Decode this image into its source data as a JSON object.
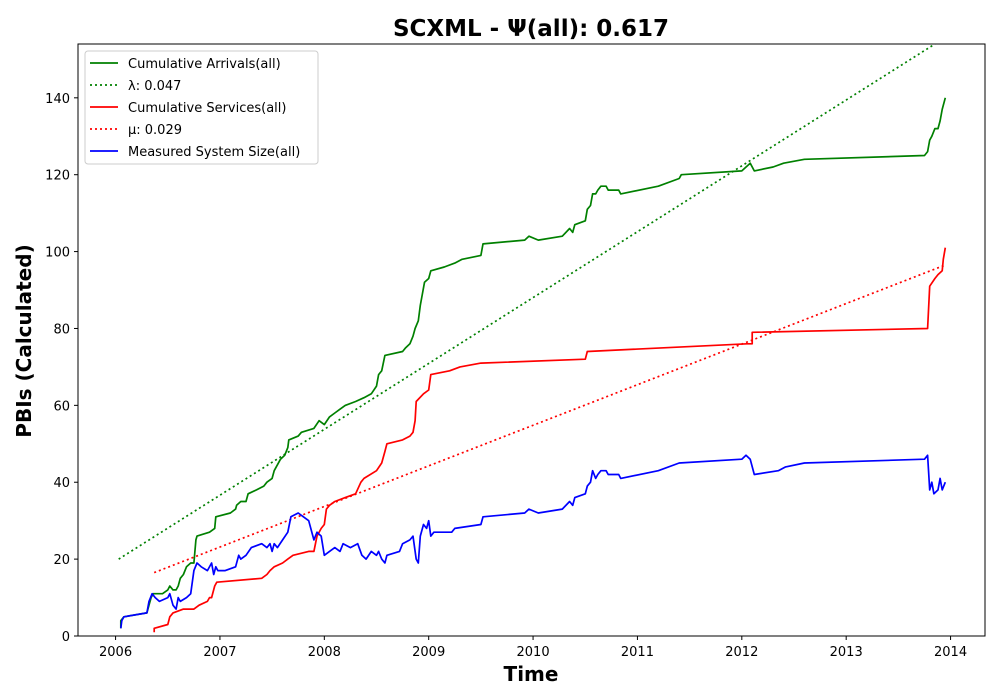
{
  "chart_data": {
    "type": "line",
    "title": "SCXML -  Ψ(all): 0.617",
    "xlabel": "Time",
    "ylabel": "PBIs (Calculated)",
    "xlim": [
      2005.64,
      2014.33
    ],
    "ylim": [
      0,
      154
    ],
    "xticks": [
      "2006",
      "2007",
      "2008",
      "2009",
      "2010",
      "2011",
      "2012",
      "2013",
      "2014"
    ],
    "yticks": [
      "0",
      "20",
      "40",
      "60",
      "80",
      "100",
      "120",
      "140"
    ],
    "grid": false,
    "legend_position": "top-left",
    "series": [
      {
        "name": "Cumulative Arrivals(all)",
        "color": "#008000",
        "style": "solid",
        "points": [
          [
            2006.05,
            2
          ],
          [
            2006.05,
            4
          ],
          [
            2006.08,
            5
          ],
          [
            2006.3,
            6
          ],
          [
            2006.32,
            8
          ],
          [
            2006.34,
            10
          ],
          [
            2006.36,
            11
          ],
          [
            2006.45,
            11
          ],
          [
            2006.5,
            12
          ],
          [
            2006.52,
            13
          ],
          [
            2006.55,
            12
          ],
          [
            2006.58,
            12
          ],
          [
            2006.6,
            13
          ],
          [
            2006.62,
            15
          ],
          [
            2006.65,
            16
          ],
          [
            2006.68,
            18
          ],
          [
            2006.72,
            19
          ],
          [
            2006.75,
            19
          ],
          [
            2006.76,
            22
          ],
          [
            2006.77,
            25
          ],
          [
            2006.78,
            26
          ],
          [
            2006.9,
            27
          ],
          [
            2006.95,
            28
          ],
          [
            2006.96,
            31
          ],
          [
            2007.1,
            32
          ],
          [
            2007.15,
            33
          ],
          [
            2007.16,
            34
          ],
          [
            2007.2,
            35
          ],
          [
            2007.25,
            35
          ],
          [
            2007.27,
            37
          ],
          [
            2007.35,
            38
          ],
          [
            2007.42,
            39
          ],
          [
            2007.45,
            40
          ],
          [
            2007.5,
            41
          ],
          [
            2007.52,
            43
          ],
          [
            2007.58,
            46
          ],
          [
            2007.62,
            47
          ],
          [
            2007.65,
            49
          ],
          [
            2007.66,
            51
          ],
          [
            2007.75,
            52
          ],
          [
            2007.78,
            53
          ],
          [
            2007.9,
            54
          ],
          [
            2007.95,
            56
          ],
          [
            2008.0,
            55
          ],
          [
            2008.05,
            57
          ],
          [
            2008.1,
            58
          ],
          [
            2008.15,
            59
          ],
          [
            2008.2,
            60
          ],
          [
            2008.3,
            61
          ],
          [
            2008.38,
            62
          ],
          [
            2008.45,
            63
          ],
          [
            2008.5,
            65
          ],
          [
            2008.52,
            68
          ],
          [
            2008.55,
            69
          ],
          [
            2008.58,
            73
          ],
          [
            2008.75,
            74
          ],
          [
            2008.78,
            75
          ],
          [
            2008.82,
            76
          ],
          [
            2008.85,
            78
          ],
          [
            2008.87,
            80
          ],
          [
            2008.9,
            82
          ],
          [
            2008.92,
            86
          ],
          [
            2008.94,
            89
          ],
          [
            2008.96,
            92
          ],
          [
            2009.0,
            93
          ],
          [
            2009.02,
            95
          ],
          [
            2009.15,
            96
          ],
          [
            2009.25,
            97
          ],
          [
            2009.32,
            98
          ],
          [
            2009.5,
            99
          ],
          [
            2009.52,
            102
          ],
          [
            2009.92,
            103
          ],
          [
            2009.96,
            104
          ],
          [
            2010.05,
            103
          ],
          [
            2010.28,
            104
          ],
          [
            2010.35,
            106
          ],
          [
            2010.38,
            105
          ],
          [
            2010.4,
            107
          ],
          [
            2010.5,
            108
          ],
          [
            2010.52,
            111
          ],
          [
            2010.55,
            112
          ],
          [
            2010.57,
            115
          ],
          [
            2010.6,
            115
          ],
          [
            2010.62,
            116
          ],
          [
            2010.65,
            117
          ],
          [
            2010.7,
            117
          ],
          [
            2010.72,
            116
          ],
          [
            2010.82,
            116
          ],
          [
            2010.84,
            115
          ],
          [
            2011.2,
            117
          ],
          [
            2011.4,
            119
          ],
          [
            2011.42,
            120
          ],
          [
            2012.0,
            121
          ],
          [
            2012.08,
            123
          ],
          [
            2012.12,
            121
          ],
          [
            2012.3,
            122
          ],
          [
            2012.4,
            123
          ],
          [
            2012.6,
            124
          ],
          [
            2013.75,
            125
          ],
          [
            2013.78,
            126
          ],
          [
            2013.8,
            129
          ],
          [
            2013.82,
            130
          ],
          [
            2013.85,
            132
          ],
          [
            2013.88,
            132
          ],
          [
            2013.9,
            134
          ],
          [
            2013.92,
            137
          ],
          [
            2013.95,
            140
          ]
        ]
      },
      {
        "name": "λ: 0.047",
        "color": "#008000",
        "style": "dotted",
        "points": [
          [
            2006.03,
            20
          ],
          [
            2013.85,
            154
          ]
        ]
      },
      {
        "name": "Cumulative Services(all)",
        "color": "#ff0000",
        "style": "solid",
        "points": [
          [
            2006.37,
            1
          ],
          [
            2006.37,
            2
          ],
          [
            2006.5,
            3
          ],
          [
            2006.52,
            5
          ],
          [
            2006.55,
            6
          ],
          [
            2006.65,
            7
          ],
          [
            2006.75,
            7
          ],
          [
            2006.8,
            8
          ],
          [
            2006.88,
            9
          ],
          [
            2006.9,
            10
          ],
          [
            2006.92,
            10
          ],
          [
            2006.95,
            13
          ],
          [
            2006.97,
            14
          ],
          [
            2007.4,
            15
          ],
          [
            2007.45,
            16
          ],
          [
            2007.48,
            17
          ],
          [
            2007.52,
            18
          ],
          [
            2007.6,
            19
          ],
          [
            2007.65,
            20
          ],
          [
            2007.7,
            21
          ],
          [
            2007.85,
            22
          ],
          [
            2007.9,
            22
          ],
          [
            2007.93,
            26
          ],
          [
            2007.97,
            28
          ],
          [
            2008.0,
            29
          ],
          [
            2008.02,
            33
          ],
          [
            2008.05,
            34
          ],
          [
            2008.1,
            35
          ],
          [
            2008.2,
            36
          ],
          [
            2008.3,
            37
          ],
          [
            2008.35,
            40
          ],
          [
            2008.38,
            41
          ],
          [
            2008.5,
            43
          ],
          [
            2008.55,
            45
          ],
          [
            2008.58,
            48
          ],
          [
            2008.6,
            50
          ],
          [
            2008.75,
            51
          ],
          [
            2008.82,
            52
          ],
          [
            2008.85,
            53
          ],
          [
            2008.87,
            56
          ],
          [
            2008.88,
            61
          ],
          [
            2008.95,
            63
          ],
          [
            2009.0,
            64
          ],
          [
            2009.02,
            68
          ],
          [
            2009.2,
            69
          ],
          [
            2009.3,
            70
          ],
          [
            2009.5,
            71
          ],
          [
            2010.5,
            72
          ],
          [
            2010.52,
            74
          ],
          [
            2012.05,
            76
          ],
          [
            2012.1,
            76
          ],
          [
            2012.1,
            79
          ],
          [
            2013.78,
            80
          ],
          [
            2013.8,
            91
          ],
          [
            2013.85,
            93
          ],
          [
            2013.88,
            94
          ],
          [
            2013.92,
            95
          ],
          [
            2013.93,
            98
          ],
          [
            2013.95,
            101
          ]
        ]
      },
      {
        "name": "μ: 0.029",
        "color": "#ff0000",
        "style": "dotted",
        "points": [
          [
            2006.37,
            16.5
          ],
          [
            2013.95,
            96.5
          ]
        ]
      },
      {
        "name": "Measured System Size(all)",
        "color": "#0000ff",
        "style": "solid",
        "points": [
          [
            2006.05,
            2
          ],
          [
            2006.06,
            4
          ],
          [
            2006.08,
            5
          ],
          [
            2006.3,
            6
          ],
          [
            2006.32,
            9
          ],
          [
            2006.35,
            11
          ],
          [
            2006.38,
            10
          ],
          [
            2006.42,
            9
          ],
          [
            2006.5,
            10
          ],
          [
            2006.52,
            11
          ],
          [
            2006.55,
            8
          ],
          [
            2006.58,
            7
          ],
          [
            2006.6,
            10
          ],
          [
            2006.62,
            9
          ],
          [
            2006.68,
            10
          ],
          [
            2006.72,
            11
          ],
          [
            2006.75,
            17
          ],
          [
            2006.78,
            19
          ],
          [
            2006.82,
            18
          ],
          [
            2006.88,
            17
          ],
          [
            2006.92,
            19
          ],
          [
            2006.94,
            16
          ],
          [
            2006.96,
            18
          ],
          [
            2006.98,
            17
          ],
          [
            2007.05,
            17
          ],
          [
            2007.15,
            18
          ],
          [
            2007.18,
            21
          ],
          [
            2007.2,
            20
          ],
          [
            2007.25,
            21
          ],
          [
            2007.3,
            23
          ],
          [
            2007.4,
            24
          ],
          [
            2007.45,
            23
          ],
          [
            2007.48,
            24
          ],
          [
            2007.5,
            22
          ],
          [
            2007.52,
            24
          ],
          [
            2007.55,
            23
          ],
          [
            2007.6,
            25
          ],
          [
            2007.65,
            27
          ],
          [
            2007.68,
            31
          ],
          [
            2007.75,
            32
          ],
          [
            2007.8,
            31
          ],
          [
            2007.85,
            30
          ],
          [
            2007.9,
            25
          ],
          [
            2007.93,
            27
          ],
          [
            2007.97,
            26
          ],
          [
            2008.0,
            21
          ],
          [
            2008.05,
            22
          ],
          [
            2008.1,
            23
          ],
          [
            2008.15,
            22
          ],
          [
            2008.18,
            24
          ],
          [
            2008.25,
            23
          ],
          [
            2008.32,
            24
          ],
          [
            2008.36,
            21
          ],
          [
            2008.4,
            20
          ],
          [
            2008.45,
            22
          ],
          [
            2008.5,
            21
          ],
          [
            2008.52,
            22
          ],
          [
            2008.55,
            20
          ],
          [
            2008.58,
            19
          ],
          [
            2008.6,
            21
          ],
          [
            2008.72,
            22
          ],
          [
            2008.75,
            24
          ],
          [
            2008.82,
            25
          ],
          [
            2008.85,
            26
          ],
          [
            2008.88,
            20
          ],
          [
            2008.9,
            19
          ],
          [
            2008.92,
            26
          ],
          [
            2008.95,
            29
          ],
          [
            2008.98,
            28
          ],
          [
            2009.0,
            30
          ],
          [
            2009.02,
            26
          ],
          [
            2009.05,
            27
          ],
          [
            2009.22,
            27
          ],
          [
            2009.25,
            28
          ],
          [
            2009.5,
            29
          ],
          [
            2009.52,
            31
          ],
          [
            2009.92,
            32
          ],
          [
            2009.96,
            33
          ],
          [
            2010.05,
            32
          ],
          [
            2010.28,
            33
          ],
          [
            2010.35,
            35
          ],
          [
            2010.38,
            34
          ],
          [
            2010.4,
            36
          ],
          [
            2010.5,
            37
          ],
          [
            2010.52,
            39
          ],
          [
            2010.55,
            40
          ],
          [
            2010.57,
            43
          ],
          [
            2010.6,
            41
          ],
          [
            2010.62,
            42
          ],
          [
            2010.65,
            43
          ],
          [
            2010.7,
            43
          ],
          [
            2010.72,
            42
          ],
          [
            2010.82,
            42
          ],
          [
            2010.84,
            41
          ],
          [
            2011.2,
            43
          ],
          [
            2011.4,
            45
          ],
          [
            2012.0,
            46
          ],
          [
            2012.04,
            47
          ],
          [
            2012.08,
            46
          ],
          [
            2012.12,
            42
          ],
          [
            2012.35,
            43
          ],
          [
            2012.42,
            44
          ],
          [
            2012.6,
            45
          ],
          [
            2013.75,
            46
          ],
          [
            2013.78,
            47
          ],
          [
            2013.8,
            38
          ],
          [
            2013.82,
            40
          ],
          [
            2013.84,
            37
          ],
          [
            2013.88,
            38
          ],
          [
            2013.9,
            41
          ],
          [
            2013.92,
            38
          ],
          [
            2013.95,
            40
          ]
        ]
      }
    ]
  }
}
